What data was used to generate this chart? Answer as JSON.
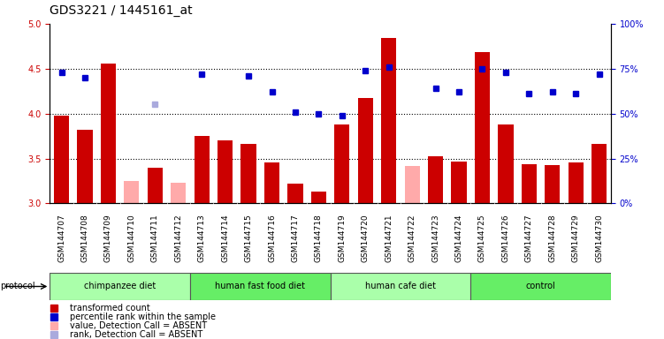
{
  "title": "GDS3221 / 1445161_at",
  "samples": [
    "GSM144707",
    "GSM144708",
    "GSM144709",
    "GSM144710",
    "GSM144711",
    "GSM144712",
    "GSM144713",
    "GSM144714",
    "GSM144715",
    "GSM144716",
    "GSM144717",
    "GSM144718",
    "GSM144719",
    "GSM144720",
    "GSM144721",
    "GSM144722",
    "GSM144723",
    "GSM144724",
    "GSM144725",
    "GSM144726",
    "GSM144727",
    "GSM144728",
    "GSM144729",
    "GSM144730"
  ],
  "values": [
    3.98,
    3.82,
    4.56,
    3.25,
    3.4,
    3.23,
    3.75,
    3.7,
    3.66,
    3.46,
    3.22,
    3.13,
    3.88,
    4.17,
    4.84,
    3.42,
    3.52,
    3.47,
    4.68,
    3.88,
    3.44,
    3.43,
    3.46,
    3.66
  ],
  "ranks_pct": [
    73,
    70,
    null,
    null,
    55,
    null,
    72,
    null,
    71,
    62,
    51,
    50,
    49,
    74,
    76,
    null,
    64,
    62,
    75,
    73,
    61,
    62,
    61,
    72
  ],
  "absent_value": [
    false,
    false,
    false,
    true,
    false,
    true,
    false,
    false,
    false,
    false,
    false,
    false,
    false,
    false,
    false,
    true,
    false,
    false,
    false,
    false,
    false,
    false,
    false,
    false
  ],
  "absent_rank": [
    false,
    false,
    false,
    false,
    true,
    true,
    false,
    true,
    false,
    false,
    false,
    false,
    false,
    false,
    false,
    false,
    false,
    false,
    false,
    false,
    false,
    false,
    false,
    false
  ],
  "groups": [
    {
      "label": "chimpanzee diet",
      "start": 0,
      "end": 5,
      "color": "#aaffaa"
    },
    {
      "label": "human fast food diet",
      "start": 6,
      "end": 11,
      "color": "#66ee66"
    },
    {
      "label": "human cafe diet",
      "start": 12,
      "end": 17,
      "color": "#aaffaa"
    },
    {
      "label": "control",
      "start": 18,
      "end": 23,
      "color": "#66ee66"
    }
  ],
  "ylim_left": [
    3.0,
    5.0
  ],
  "ylim_right": [
    0,
    100
  ],
  "bar_color": "#cc0000",
  "absent_bar_color": "#ffaaaa",
  "dot_color": "#0000cc",
  "absent_dot_color": "#aaaadd",
  "plot_bg": "#ffffff",
  "xtick_bg": "#cccccc",
  "grid_color": "#000000",
  "title_fontsize": 10,
  "tick_fontsize": 7,
  "label_fontsize": 8,
  "legend_fontsize": 8
}
